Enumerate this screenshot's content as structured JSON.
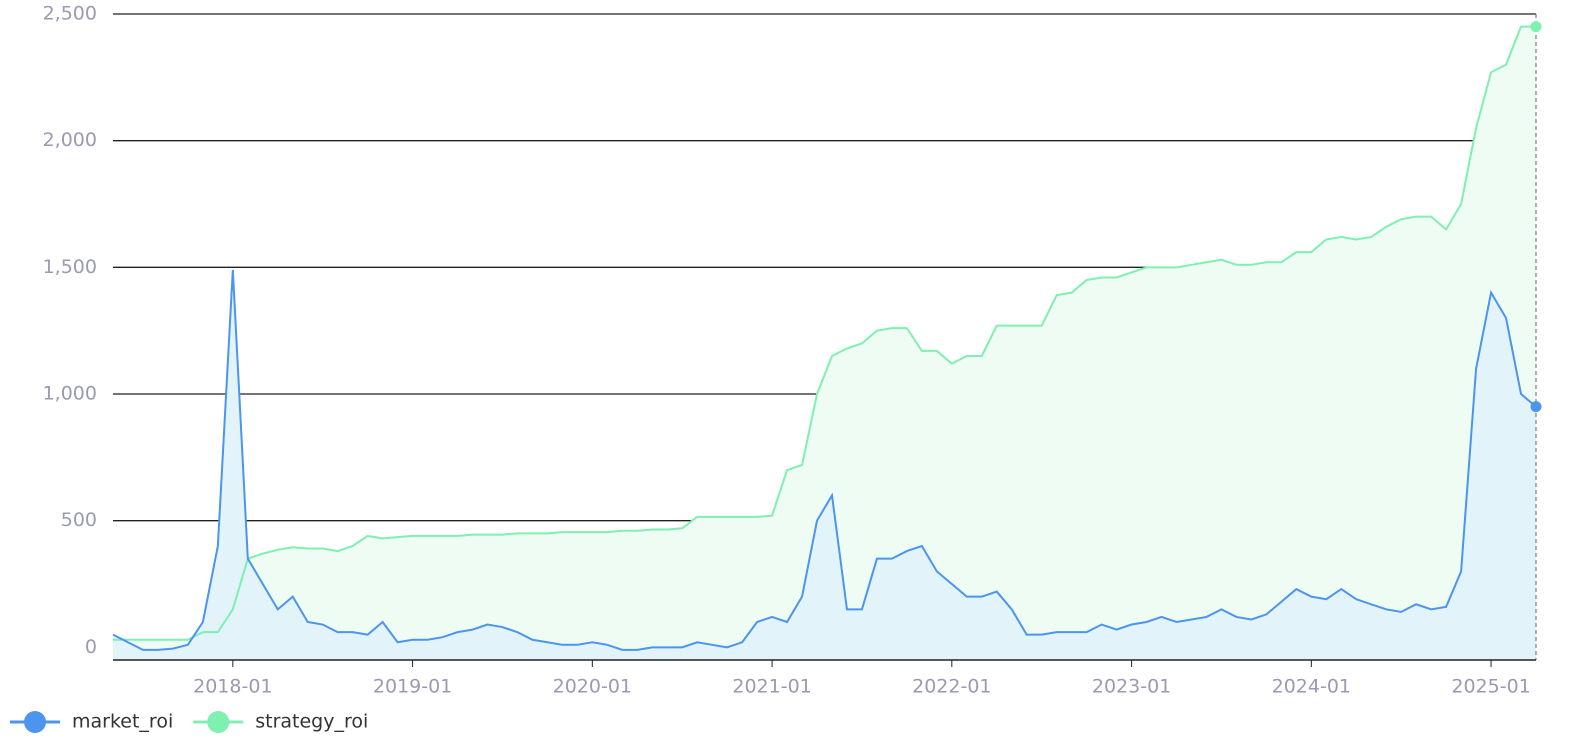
{
  "chart_data": {
    "type": "line",
    "x": [
      "2017-05",
      "2017-06",
      "2017-07",
      "2017-08",
      "2017-09",
      "2017-10",
      "2017-11",
      "2017-12",
      "2018-01",
      "2018-02",
      "2018-03",
      "2018-04",
      "2018-05",
      "2018-06",
      "2018-07",
      "2018-08",
      "2018-09",
      "2018-10",
      "2018-11",
      "2018-12",
      "2019-01",
      "2019-02",
      "2019-03",
      "2019-04",
      "2019-05",
      "2019-06",
      "2019-07",
      "2019-08",
      "2019-09",
      "2019-10",
      "2019-11",
      "2019-12",
      "2020-01",
      "2020-02",
      "2020-03",
      "2020-04",
      "2020-05",
      "2020-06",
      "2020-07",
      "2020-08",
      "2020-09",
      "2020-10",
      "2020-11",
      "2020-12",
      "2021-01",
      "2021-02",
      "2021-03",
      "2021-04",
      "2021-05",
      "2021-06",
      "2021-07",
      "2021-08",
      "2021-09",
      "2021-10",
      "2021-11",
      "2021-12",
      "2022-01",
      "2022-02",
      "2022-03",
      "2022-04",
      "2022-05",
      "2022-06",
      "2022-07",
      "2022-08",
      "2022-09",
      "2022-10",
      "2022-11",
      "2022-12",
      "2023-01",
      "2023-02",
      "2023-03",
      "2023-04",
      "2023-05",
      "2023-06",
      "2023-07",
      "2023-08",
      "2023-09",
      "2023-10",
      "2023-11",
      "2023-12",
      "2024-01",
      "2024-02",
      "2024-03",
      "2024-04",
      "2024-05",
      "2024-06",
      "2024-07",
      "2024-08",
      "2024-09",
      "2024-10",
      "2024-11",
      "2024-12",
      "2025-01",
      "2025-02",
      "2025-03",
      "2025-04"
    ],
    "series": [
      {
        "name": "market_roi",
        "color": "#4b95ef",
        "fill": "#e2f3fa",
        "values": [
          50,
          20,
          -10,
          -10,
          -5,
          10,
          100,
          400,
          1490,
          350,
          250,
          150,
          200,
          100,
          90,
          60,
          60,
          50,
          100,
          20,
          30,
          30,
          40,
          60,
          70,
          90,
          80,
          60,
          30,
          20,
          10,
          10,
          20,
          10,
          -10,
          -10,
          0,
          0,
          0,
          20,
          10,
          0,
          20,
          100,
          120,
          100,
          200,
          500,
          600,
          150,
          150,
          350,
          350,
          380,
          400,
          300,
          250,
          200,
          200,
          220,
          150,
          50,
          50,
          60,
          60,
          60,
          90,
          70,
          90,
          100,
          120,
          100,
          110,
          120,
          150,
          120,
          110,
          130,
          180,
          230,
          200,
          190,
          230,
          190,
          170,
          150,
          140,
          170,
          150,
          160,
          300,
          1100,
          1400,
          1300,
          1000,
          950
        ]
      },
      {
        "name": "strategy_roi",
        "color": "#7ef0b0",
        "fill": "#effcf4",
        "values": [
          30,
          30,
          30,
          30,
          30,
          30,
          60,
          60,
          150,
          350,
          370,
          385,
          395,
          390,
          390,
          380,
          400,
          440,
          430,
          435,
          440,
          440,
          440,
          440,
          445,
          445,
          445,
          450,
          450,
          450,
          455,
          455,
          455,
          455,
          460,
          460,
          465,
          465,
          470,
          515,
          515,
          515,
          515,
          515,
          520,
          700,
          720,
          1000,
          1150,
          1180,
          1200,
          1250,
          1260,
          1260,
          1170,
          1170,
          1120,
          1150,
          1150,
          1270,
          1270,
          1270,
          1270,
          1390,
          1400,
          1450,
          1460,
          1460,
          1480,
          1500,
          1500,
          1500,
          1510,
          1520,
          1530,
          1510,
          1510,
          1520,
          1520,
          1560,
          1560,
          1610,
          1620,
          1610,
          1620,
          1660,
          1690,
          1700,
          1700,
          1650,
          1750,
          2050,
          2270,
          2300,
          2450,
          2450
        ]
      }
    ],
    "xlim": [
      "2017-05",
      "2025-04"
    ],
    "xticks": [
      "2018-01",
      "2019-01",
      "2020-01",
      "2021-01",
      "2022-01",
      "2023-01",
      "2024-01",
      "2025-01"
    ],
    "ylim": [
      -50,
      2500
    ],
    "yticks": [
      0,
      500,
      {
        "value": 1000,
        "label": "1,000"
      },
      {
        "value": 1500,
        "label": "1,500"
      },
      {
        "value": 2000,
        "label": "2,000"
      },
      {
        "value": 2500,
        "label": "2,500"
      }
    ],
    "grid": true
  }
}
